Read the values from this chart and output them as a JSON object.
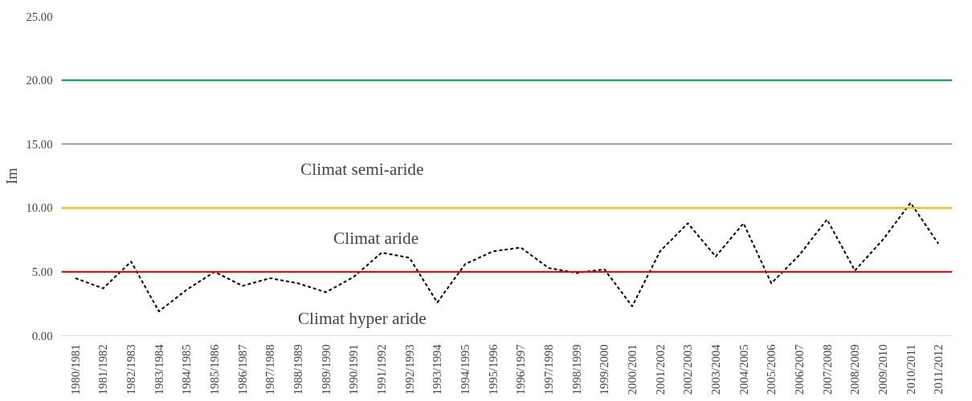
{
  "chart_data": {
    "type": "line",
    "ylabel": "Im",
    "categories": [
      "1980/1981",
      "1981/1982",
      "1982/1983",
      "1983/1984",
      "1984/1985",
      "1985/1986",
      "1986/1987",
      "1987/1988",
      "1988/1989",
      "1989/1990",
      "1990/1991",
      "1991/1992",
      "1992/1993",
      "1993/1994",
      "1994/1995",
      "1995/1996",
      "1996/1997",
      "1997/1998",
      "1998/1999",
      "1999/2000",
      "2000/2001",
      "2001/2002",
      "2002/2003",
      "2003/2004",
      "2004/2005",
      "2005/2006",
      "2006/2007",
      "2007/2008",
      "2008/2009",
      "2009/2010",
      "2010/2011",
      "2011/2012"
    ],
    "series": [
      {
        "color": "#000000",
        "values": [
          4.5,
          3.7,
          5.8,
          1.9,
          3.6,
          5.0,
          3.9,
          4.5,
          4.1,
          3.4,
          4.6,
          6.5,
          6.1,
          2.6,
          5.6,
          6.6,
          6.9,
          5.3,
          4.9,
          5.2,
          2.3,
          6.6,
          8.8,
          6.2,
          8.8,
          4.1,
          6.3,
          9.1,
          5.1,
          7.5,
          10.4,
          7.2
        ]
      }
    ],
    "line_style": "dashed",
    "ylim": [
      0,
      25
    ],
    "yticks": [
      {
        "value": 0,
        "label": "0.00"
      },
      {
        "value": 5,
        "label": "5.00"
      },
      {
        "value": 10,
        "label": "10.00"
      },
      {
        "value": 15,
        "label": "15.00"
      },
      {
        "value": 20,
        "label": "20.00"
      },
      {
        "value": 25,
        "label": "25.00"
      }
    ],
    "grid": "y",
    "ref_lines": [
      {
        "axis": "y",
        "value": 5,
        "color": "#ff0000"
      },
      {
        "axis": "y",
        "value": 10,
        "color": "#ffc000"
      },
      {
        "axis": "y",
        "value": 20,
        "color": "#00b050"
      }
    ],
    "annotations": [
      "Climat semi-aride",
      "Climat aride",
      "Climat hyper aride"
    ]
  }
}
